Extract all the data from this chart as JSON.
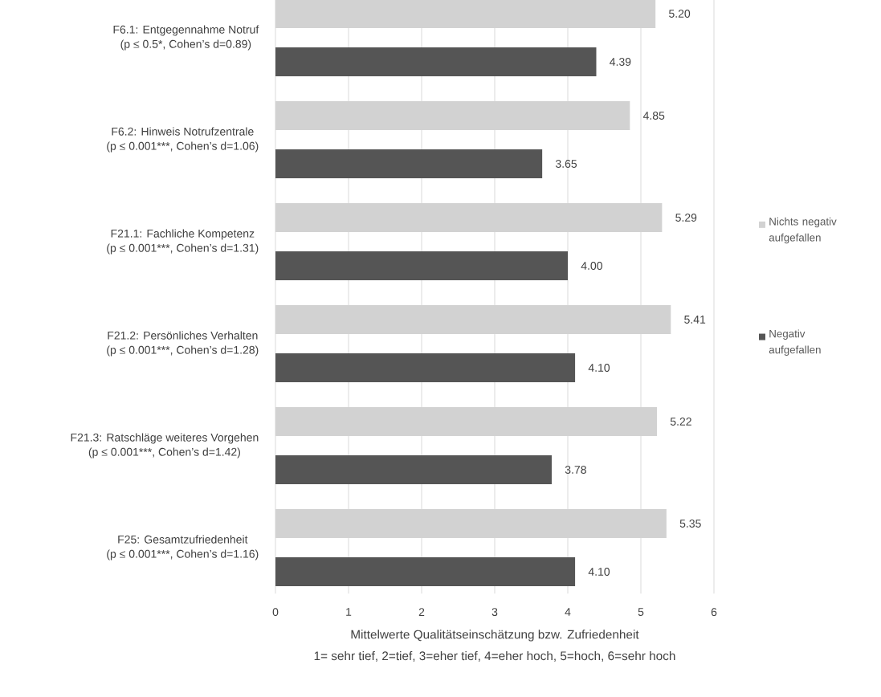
{
  "chart_data": {
    "type": "bar",
    "orientation": "horizontal",
    "categories": [
      "F6.1: Entgegennahme Notruf\n(p ≤ 0.5*, Cohen’s d=0.89)",
      "F6.2: Hinweis Notrufzentrale\n(p ≤ 0.001***, Cohen’s d=1.06)",
      "F21.1: Fachliche Kompetenz\n(p ≤ 0.001***, Cohen’s d=1.31)",
      "F21.2: Persönliches Verhalten\n(p ≤ 0.001***, Cohen’s d=1.28)",
      "F21.3: Ratschläge weiteres Vorgehen\n(p ≤ 0.001***, Cohen’s d=1.42)",
      "F25: Gesamtzufriedenheit\n(p ≤ 0.001***, Cohen’s d=1.16)"
    ],
    "series": [
      {
        "name": "Nichts negativ aufgefallen",
        "color": "#d2d2d2",
        "values": [
          5.2,
          4.85,
          5.29,
          5.41,
          5.22,
          5.35
        ],
        "value_labels": [
          "5.20",
          "4.85",
          "5.29",
          "5.41",
          "5.22",
          "5.35"
        ]
      },
      {
        "name": "Negativ aufgefallen",
        "color": "#555555",
        "values": [
          4.39,
          3.65,
          4.0,
          4.1,
          3.78,
          4.1
        ],
        "value_labels": [
          "4.39",
          "3.65",
          "4.00",
          "4.10",
          "3.78",
          "4.10"
        ]
      }
    ],
    "xlabel": "Mittelwerte Qualitätseinschätzung bzw. Zufriedenheit\n1= sehr tief, 2=tief, 3=eher tief, 4=eher hoch, 5=hoch, 6=sehr hoch",
    "xlim": [
      0,
      6
    ],
    "xticks": [
      0,
      1,
      2,
      3,
      4,
      5,
      6
    ],
    "grid": "x",
    "legend": "right"
  }
}
